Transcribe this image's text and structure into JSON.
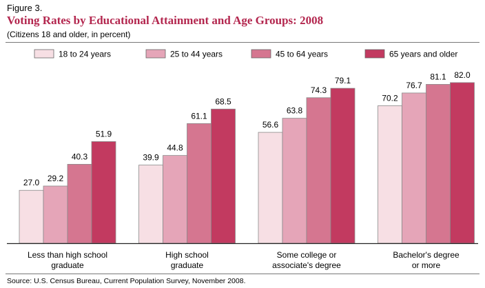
{
  "figure_label": "Figure 3.",
  "source": "Source: U.S. Census Bureau, Current Population Survey, November 2008.",
  "chart_data": {
    "type": "bar",
    "title": "Voting Rates by Educational Attainment and Age Groups: 2008",
    "subtitle": "(Citizens 18 and older, in percent)",
    "categories": [
      [
        "Less than high school",
        "graduate"
      ],
      [
        "High school",
        "graduate"
      ],
      [
        "Some college or",
        "associate's degree"
      ],
      [
        "Bachelor's degree",
        "or more"
      ]
    ],
    "series": [
      {
        "name": "18 to 24 years",
        "color": "#f7dfe4",
        "values": [
          27.0,
          39.9,
          56.6,
          70.2
        ]
      },
      {
        "name": "25 to 44 years",
        "color": "#e5a5b8",
        "values": [
          29.2,
          44.8,
          63.8,
          76.7
        ]
      },
      {
        "name": "45 to 64 years",
        "color": "#d57690",
        "values": [
          40.3,
          61.1,
          74.3,
          81.1
        ]
      },
      {
        "name": "65 years and older",
        "color": "#c23a60",
        "values": [
          51.9,
          68.5,
          79.1,
          82.0
        ]
      }
    ],
    "ylim": [
      0,
      100
    ],
    "xlabel": "",
    "ylabel": "",
    "legend": "top",
    "grid": false
  }
}
